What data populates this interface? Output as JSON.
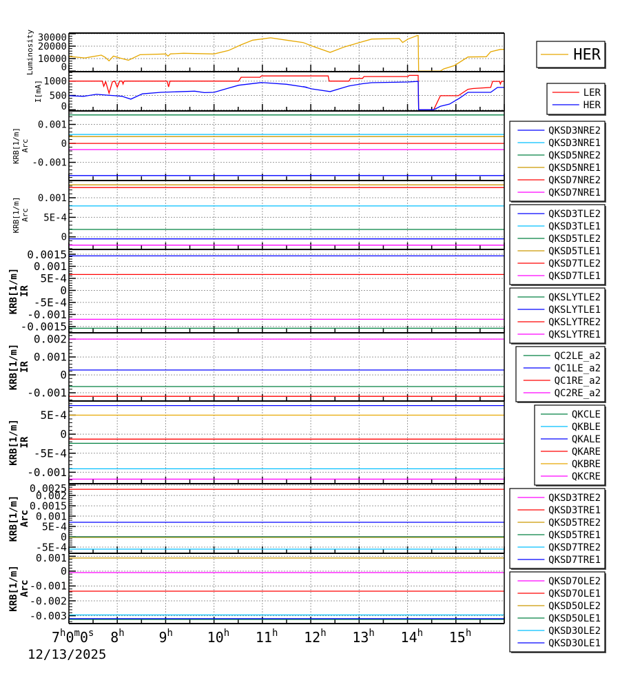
{
  "chart_data": {
    "type": "line",
    "x_axis": {
      "unit": "hour",
      "xlim": [
        7,
        16
      ],
      "ticks": [
        {
          "value": 7,
          "main": "7",
          "sup": "h",
          "main2": "0",
          "sup2": "m",
          "main3": "0",
          "sup3": "s"
        },
        {
          "value": 8,
          "main": "8",
          "sup": "h"
        },
        {
          "value": 9,
          "main": "9",
          "sup": "h"
        },
        {
          "value": 10,
          "main": "10",
          "sup": "h"
        },
        {
          "value": 11,
          "main": "11",
          "sup": "h"
        },
        {
          "value": 12,
          "main": "12",
          "sup": "h"
        },
        {
          "value": 13,
          "main": "13",
          "sup": "h"
        },
        {
          "value": 14,
          "main": "14",
          "sup": "h"
        },
        {
          "value": 15,
          "main": "15",
          "sup": "h"
        }
      ],
      "date_label": "12/13/2025"
    },
    "grid": true,
    "panels": [
      {
        "ylabel": [
          "Luminosity"
        ],
        "ylim": [
          -500,
          30500
        ],
        "yticks": [
          {
            "v": 0,
            "label": "0"
          },
          {
            "v": 10000,
            "label": "10000"
          },
          {
            "v": 20000,
            "label": "20000"
          },
          {
            "v": 30000,
            "label": "30000"
          }
        ],
        "series": [
          {
            "name": "HER",
            "color": "#e6a800",
            "points": [
              [
                7.0,
                11800
              ],
              [
                7.33,
                10500
              ],
              [
                7.67,
                12800
              ],
              [
                7.75,
                11000
              ],
              [
                7.83,
                8200
              ],
              [
                7.92,
                12000
              ],
              [
                8.05,
                10500
              ],
              [
                8.23,
                8700
              ],
              [
                8.47,
                13100
              ],
              [
                9.0,
                13700
              ],
              [
                9.05,
                12000
              ],
              [
                9.1,
                13800
              ],
              [
                9.37,
                14300
              ],
              [
                10.0,
                13700
              ],
              [
                10.3,
                16500
              ],
              [
                10.56,
                21100
              ],
              [
                10.8,
                24800
              ],
              [
                11.17,
                26700
              ],
              [
                11.5,
                24800
              ],
              [
                11.84,
                22900
              ],
              [
                12.02,
                20200
              ],
              [
                12.4,
                15000
              ],
              [
                12.69,
                19300
              ],
              [
                13.02,
                23000
              ],
              [
                13.26,
                25700
              ],
              [
                13.83,
                26100
              ],
              [
                13.9,
                22900
              ],
              [
                14.01,
                25700
              ],
              [
                14.2,
                28500
              ],
              [
                14.22,
                28500
              ],
              [
                14.23,
                0
              ],
              [
                14.68,
                0
              ],
              [
                14.75,
                1700
              ],
              [
                14.97,
                4400
              ],
              [
                15.25,
                11300
              ],
              [
                15.63,
                11500
              ],
              [
                15.72,
                15500
              ],
              [
                15.92,
                17400
              ],
              [
                16.0,
                17400
              ]
            ]
          }
        ],
        "legend": [
          {
            "label": "HER",
            "color": "#e6a800"
          }
        ]
      },
      {
        "ylabel": [
          "I[mA]"
        ],
        "ylim": [
          -40,
          1330
        ],
        "yticks": [
          {
            "v": 0,
            "label": "0"
          },
          {
            "v": 500,
            "label": "500"
          },
          {
            "v": 1000,
            "label": "1000"
          }
        ],
        "series": [
          {
            "name": "LER",
            "color": "#ff0000",
            "points": [
              [
                7.0,
                1000
              ],
              [
                7.69,
                1000
              ],
              [
                7.72,
                820
              ],
              [
                7.76,
                980
              ],
              [
                7.83,
                580
              ],
              [
                7.9,
                980
              ],
              [
                7.95,
                1000
              ],
              [
                8.0,
                790
              ],
              [
                8.05,
                1000
              ],
              [
                8.1,
                1000
              ],
              [
                8.12,
                900
              ],
              [
                8.14,
                1000
              ],
              [
                9.03,
                1000
              ],
              [
                9.06,
                800
              ],
              [
                9.09,
                1000
              ],
              [
                10.51,
                1000
              ],
              [
                10.56,
                1135
              ],
              [
                10.95,
                1135
              ],
              [
                10.98,
                1180
              ],
              [
                12.36,
                1180
              ],
              [
                12.38,
                1000
              ],
              [
                12.79,
                1000
              ],
              [
                12.82,
                1095
              ],
              [
                13.07,
                1095
              ],
              [
                13.1,
                1160
              ],
              [
                14.01,
                1160
              ],
              [
                14.03,
                1200
              ],
              [
                14.22,
                1200
              ],
              [
                14.23,
                0
              ],
              [
                14.54,
                0
              ],
              [
                14.68,
                490
              ],
              [
                15.05,
                490
              ],
              [
                15.25,
                715
              ],
              [
                15.35,
                740
              ],
              [
                15.72,
                780
              ],
              [
                15.76,
                990
              ],
              [
                15.9,
                990
              ],
              [
                15.92,
                900
              ],
              [
                15.94,
                990
              ],
              [
                16.0,
                990
              ]
            ]
          },
          {
            "name": "HER",
            "color": "#0000ff",
            "points": [
              [
                7.0,
                490
              ],
              [
                7.3,
                470
              ],
              [
                7.57,
                540
              ],
              [
                7.8,
                510
              ],
              [
                7.95,
                490
              ],
              [
                8.1,
                470
              ],
              [
                8.28,
                370
              ],
              [
                8.52,
                555
              ],
              [
                8.9,
                610
              ],
              [
                9.6,
                650
              ],
              [
                9.8,
                600
              ],
              [
                10.0,
                610
              ],
              [
                10.3,
                755
              ],
              [
                10.51,
                857
              ],
              [
                10.98,
                950
              ],
              [
                11.5,
                890
              ],
              [
                11.93,
                780
              ],
              [
                11.84,
                810
              ],
              [
                12.02,
                730
              ],
              [
                12.4,
                635
              ],
              [
                12.79,
                833
              ],
              [
                13.07,
                910
              ],
              [
                13.26,
                945
              ],
              [
                14.01,
                970
              ],
              [
                14.22,
                990
              ],
              [
                14.23,
                0
              ],
              [
                14.54,
                0
              ],
              [
                14.68,
                120
              ],
              [
                14.87,
                200
              ],
              [
                15.07,
                400
              ],
              [
                15.25,
                610
              ],
              [
                15.72,
                610
              ],
              [
                15.86,
                780
              ],
              [
                16.0,
                780
              ]
            ]
          }
        ],
        "legend": [
          {
            "label": "LER",
            "color": "#ff0000"
          },
          {
            "label": "HER",
            "color": "#0000ff"
          }
        ]
      },
      {
        "ylabel": [
          "KRB[1/m]",
          "Arc"
        ],
        "ylim": [
          -0.00196,
          0.00171
        ],
        "yticks": [
          {
            "v": -0.001,
            "label": "-0.001"
          },
          {
            "v": 0,
            "label": "0"
          },
          {
            "v": 0.001,
            "label": "0.001"
          }
        ],
        "series": [
          {
            "name": "QKSD3NRE2",
            "color": "#0000ff",
            "value": -0.0017
          },
          {
            "name": "QKSD3NRE1",
            "color": "#00bfff",
            "value": 0.00047
          },
          {
            "name": "QKSD5NRE2",
            "color": "#008040",
            "value": 0.0015
          },
          {
            "name": "QKSD5NRE1",
            "color": "#cc9900",
            "value": 0.00036
          },
          {
            "name": "QKSD7NRE2",
            "color": "#ff0000",
            "value": 0
          },
          {
            "name": "QKSD7NRE1",
            "color": "#ff00ff",
            "value": -0.00033
          }
        ]
      },
      {
        "ylabel": [
          "KRB[1/m]",
          "Arc"
        ],
        "ylim": [
          -0.00032,
          0.00144
        ],
        "yticks": [
          {
            "v": 0,
            "label": "0"
          },
          {
            "v": 0.0005,
            "label": "5E-4"
          },
          {
            "v": 0.001,
            "label": "0.001"
          }
        ],
        "series": [
          {
            "name": "QKSD3TLE2",
            "color": "#0000ff",
            "value": -5e-05
          },
          {
            "name": "QKSD3TLE1",
            "color": "#00bfff",
            "value": 0.00079
          },
          {
            "name": "QKSD5TLE2",
            "color": "#008040",
            "value": 0.00019
          },
          {
            "name": "QKSD5TLE1",
            "color": "#cc9900",
            "value": 0.00133
          },
          {
            "name": "QKSD7TLE2",
            "color": "#ff0000",
            "value": 0.00126
          },
          {
            "name": "QKSD7TLE1",
            "color": "#ff00ff",
            "value": -0.00021
          }
        ]
      },
      {
        "ylabel": [
          "KRB[1/m]",
          "IR"
        ],
        "ylim": [
          -0.00176,
          0.0017
        ],
        "yticks": [
          {
            "v": -0.0015,
            "label": "-0.0015"
          },
          {
            "v": -0.001,
            "label": "-0.001"
          },
          {
            "v": -0.0005,
            "label": "-5E-4"
          },
          {
            "v": 0,
            "label": "0"
          },
          {
            "v": 0.0005,
            "label": "5E-4"
          },
          {
            "v": 0.001,
            "label": "0.001"
          },
          {
            "v": 0.0015,
            "label": "0.0015"
          }
        ],
        "series": [
          {
            "name": "QKSLYTLE2",
            "color": "#008040",
            "value": -0.00157
          },
          {
            "name": "QKSLYTLE1",
            "color": "#0000ff",
            "value": 0.00143
          },
          {
            "name": "QKSLYTRE2",
            "color": "#ff0000",
            "value": 0.00066
          },
          {
            "name": "QKSLYTRE1",
            "color": "#ff00ff",
            "value": -0.0012
          }
        ]
      },
      {
        "ylabel": [
          "KRB[1/m]",
          "IR"
        ],
        "ylim": [
          -0.00146,
          0.00235
        ],
        "yticks": [
          {
            "v": -0.001,
            "label": "-0.001"
          },
          {
            "v": 0,
            "label": "0"
          },
          {
            "v": 0.001,
            "label": "0.001"
          },
          {
            "v": 0.002,
            "label": "0.002"
          }
        ],
        "series": [
          {
            "name": "QC2LE_a2",
            "color": "#008040",
            "value": -0.00065
          },
          {
            "name": "QC1LE_a2",
            "color": "#0000ff",
            "value": 0.00027
          },
          {
            "name": "QC1RE_a2",
            "color": "#ff0000",
            "value": -0.0012
          },
          {
            "name": "QC2RE_a2",
            "color": "#ff00ff",
            "value": 0.002
          }
        ]
      },
      {
        "ylabel": [
          "KRB[1/m]",
          "IR"
        ],
        "ylim": [
          -0.0013,
          0.00087
        ],
        "yticks": [
          {
            "v": -0.001,
            "label": "-0.001"
          },
          {
            "v": -0.0005,
            "label": "-5E-4"
          },
          {
            "v": 0,
            "label": "0"
          },
          {
            "v": 0.0005,
            "label": "5E-4"
          }
        ],
        "series": [
          {
            "name": "QKCLE",
            "color": "#008040",
            "value": -0.00024
          },
          {
            "name": "QKBLE",
            "color": "#00bfff",
            "value": -0.00091
          },
          {
            "name": "QKALE",
            "color": "#0000ff",
            "value": 0.00075
          },
          {
            "name": "QKARE",
            "color": "#ff0000",
            "value": -0.00013
          },
          {
            "name": "QKBRE",
            "color": "#e6a800",
            "value": 0.0005
          },
          {
            "name": "QKCRE",
            "color": "#ff00ff",
            "value": -0.00118
          }
        ]
      },
      {
        "ylabel": [
          "KRB[1/m]",
          "Arc"
        ],
        "ylim": [
          -0.0008,
          0.00257
        ],
        "yticks": [
          {
            "v": -0.0005,
            "label": "-5E-4"
          },
          {
            "v": 0,
            "label": "0"
          },
          {
            "v": 0.0005,
            "label": "5E-4"
          },
          {
            "v": 0.001,
            "label": "0.001"
          },
          {
            "v": 0.0015,
            "label": "0.0015"
          },
          {
            "v": 0.002,
            "label": "0.002"
          },
          {
            "v": 0.0025,
            "label": "0.0025"
          }
        ],
        "series": [
          {
            "name": "QKSD3TRE2",
            "color": "#ff00ff",
            "value": 0
          },
          {
            "name": "QKSD3TRE1",
            "color": "#ff0000",
            "value": 0.0023
          },
          {
            "name": "QKSD5TRE2",
            "color": "#cc9900",
            "value": -3e-05
          },
          {
            "name": "QKSD5TRE1",
            "color": "#008040",
            "value": 0
          },
          {
            "name": "QKSD7TRE2",
            "color": "#00bfff",
            "value": -0.0006
          },
          {
            "name": "QKSD7TRE1",
            "color": "#0000ff",
            "value": 0.0007
          }
        ]
      },
      {
        "ylabel": [
          "KRB[1/m]",
          "Arc"
        ],
        "ylim": [
          -0.00353,
          0.0012
        ],
        "yticks": [
          {
            "v": -0.003,
            "label": "-0.003"
          },
          {
            "v": -0.002,
            "label": "-0.002"
          },
          {
            "v": -0.001,
            "label": "-0.001"
          },
          {
            "v": 0,
            "label": "0"
          },
          {
            "v": 0.001,
            "label": "0.001"
          }
        ],
        "series": [
          {
            "name": "QKSD7OLE2",
            "color": "#ff00ff",
            "value": -0.0001
          },
          {
            "name": "QKSD7OLE1",
            "color": "#ff0000",
            "value": -0.00135
          },
          {
            "name": "QKSD5OLE2",
            "color": "#cc9900",
            "value": 0.00088
          },
          {
            "name": "QKSD5OLE1",
            "color": "#008040",
            "value": -0.00325
          },
          {
            "name": "QKSD3OLE2",
            "color": "#00bfff",
            "value": -0.00295
          },
          {
            "name": "QKSD3OLE1",
            "color": "#0000ff",
            "value": -0.0032
          }
        ]
      }
    ]
  }
}
